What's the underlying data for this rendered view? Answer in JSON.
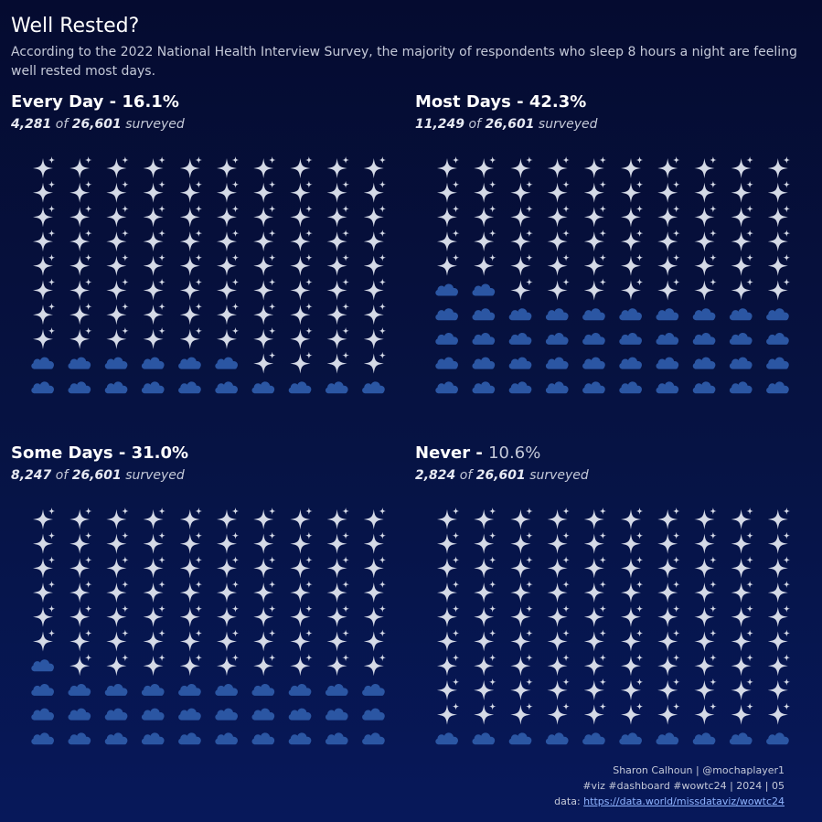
{
  "header": {
    "title": "Well Rested?",
    "subtitle": "According to the 2022 National Health Interview Survey, the majority of respondents who sleep 8 hours a night are feeling well rested most days."
  },
  "colors": {
    "star": "#d4d9e6",
    "cloud": "#2b56a3"
  },
  "icons": {
    "rested": "sparkle-icon",
    "not_rested": "cloud-icon"
  },
  "common": {
    "of_text": "of",
    "surveyed_text": "surveyed",
    "total": "26,601"
  },
  "chart_data": [
    {
      "type": "waffle",
      "title": "Every Day - 16.1%",
      "category": "Every Day",
      "percent": 16.1,
      "percent_label": "16.1%",
      "count": "4,281",
      "total": "26,601",
      "grid": [
        10,
        10
      ],
      "cloud_cells": 16
    },
    {
      "type": "waffle",
      "title": "Most Days - 42.3%",
      "category": "Most Days",
      "percent": 42.3,
      "percent_label": "42.3%",
      "count": "11,249",
      "total": "26,601",
      "grid": [
        10,
        10
      ],
      "cloud_cells": 42
    },
    {
      "type": "waffle",
      "title": "Some Days - 31.0%",
      "category": "Some Days",
      "percent": 31.0,
      "percent_label": "31.0%",
      "count": "8,247",
      "total": "26,601",
      "grid": [
        10,
        10
      ],
      "cloud_cells": 31
    },
    {
      "type": "waffle",
      "title": "Never - 10.6%",
      "category": "Never",
      "percent": 10.6,
      "percent_label": "10.6%",
      "count": "2,824",
      "total": "26,601",
      "grid": [
        10,
        10
      ],
      "cloud_cells": 10
    }
  ],
  "footer": {
    "author": "Sharon Calhoun | @mochaplayer1",
    "tags": "#viz #dashboard #wowtc24 | 2024 | 05",
    "data_label": "data:",
    "data_link": "https://data.world/missdataviz/wowtc24"
  }
}
